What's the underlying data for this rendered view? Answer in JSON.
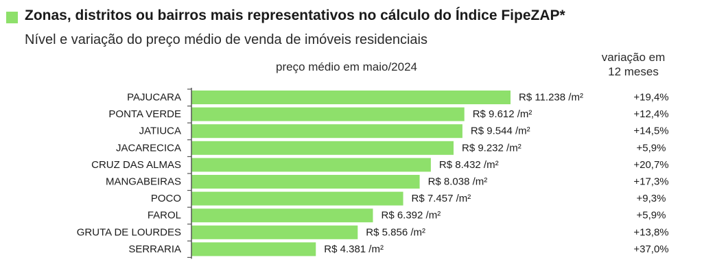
{
  "title": "Zonas, distritos ou bairros mais representativos no cálculo do Índice FipeZAP*",
  "subtitle": "Nível e variação do preço médio de venda de imóveis residenciais",
  "value_header": "preço médio em maio/2024",
  "change_header": [
    "variação em",
    "12 meses"
  ],
  "colors": {
    "bar": "#8ee06b",
    "title_square": "#8ee06b",
    "axis": "#555555",
    "text": "#1a1a1a"
  },
  "chart_data": {
    "type": "bar",
    "orientation": "horizontal",
    "categories": [
      "PAJUCARA",
      "PONTA VERDE",
      "JATIUCA",
      "JACARECICA",
      "CRUZ DAS ALMAS",
      "MANGABEIRAS",
      "POCO",
      "FAROL",
      "GRUTA DE LOURDES",
      "SERRARIA"
    ],
    "values": [
      11238,
      9612,
      9544,
      9232,
      8432,
      8038,
      7457,
      6392,
      5856,
      4381
    ],
    "value_labels": [
      "R$ 11.238 /m²",
      "R$ 9.612 /m²",
      "R$ 9.544 /m²",
      "R$ 9.232 /m²",
      "R$ 8.432 /m²",
      "R$ 8.038 /m²",
      "R$ 7.457 /m²",
      "R$ 6.392 /m²",
      "R$ 5.856 /m²",
      "R$ 4.381 /m²"
    ],
    "variation_12m": [
      "+19,4%",
      "+12,4%",
      "+14,5%",
      "+5,9%",
      "+20,7%",
      "+17,3%",
      "+9,3%",
      "+5,9%",
      "+13,8%",
      "+37,0%"
    ],
    "xlim": [
      0,
      11238
    ],
    "grid": false,
    "legend": "none"
  }
}
